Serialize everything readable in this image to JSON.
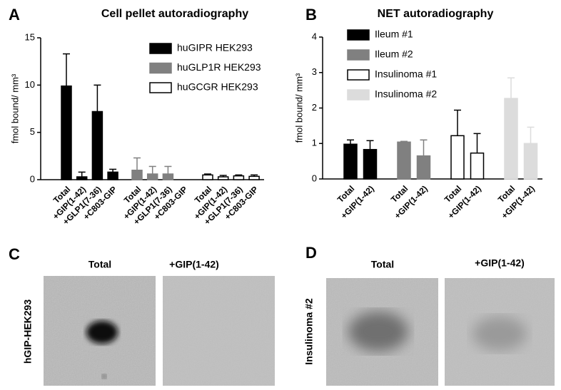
{
  "chart_data": [
    {
      "type": "bar",
      "panel": "A",
      "title": "Cell pellet autoradiography",
      "ylabel": "fmol bound/ mm³",
      "categories": [
        "Total",
        "+GIP(1-42)",
        "+GLP1(7-36)",
        "+C803-GIP",
        "Total",
        "+GIP(1-42)",
        "+GLP1(7-36)",
        "+C803-GIP",
        "Total",
        "+GIP(1-42)",
        "+GLP1(7-36)",
        "+C803-GIP"
      ],
      "series": [
        {
          "name": "huGIPR HEK293",
          "color": "#000000",
          "values": [
            9.9,
            0.3,
            7.2,
            0.8,
            null,
            null,
            null,
            null,
            null,
            null,
            null,
            null
          ],
          "errors": [
            3.4,
            0.5,
            2.8,
            0.3,
            null,
            null,
            null,
            null,
            null,
            null,
            null,
            null
          ]
        },
        {
          "name": "huGLP1R HEK293",
          "color": "#808080",
          "values": [
            null,
            null,
            null,
            null,
            1.0,
            0.6,
            0.6,
            0,
            null,
            null,
            null,
            null
          ],
          "errors": [
            null,
            null,
            null,
            null,
            1.3,
            0.8,
            0.8,
            null,
            null,
            null,
            null,
            null
          ]
        },
        {
          "name": "huGCGR HEK293",
          "color": "#ffffff",
          "values": [
            null,
            null,
            null,
            null,
            null,
            null,
            null,
            null,
            0.5,
            0.3,
            0.4,
            0.35
          ],
          "errors": [
            null,
            null,
            null,
            null,
            null,
            null,
            null,
            null,
            0.1,
            0.15,
            0.1,
            0.15
          ]
        }
      ],
      "ylim": [
        0,
        15
      ],
      "yticks": [
        0,
        5,
        10,
        15
      ],
      "grid": false
    },
    {
      "type": "bar",
      "panel": "B",
      "title": "NET autoradiography",
      "ylabel": "fmol bound/ mm³",
      "categories": [
        "Total",
        "+GIP(1-42)",
        "Total",
        "+GIP(1-42)",
        "Total",
        "+GIP(1-42)",
        "Total",
        "+GIP(1-42)"
      ],
      "series": [
        {
          "name": "Ileum #1",
          "color": "#000000",
          "values": [
            0.98,
            0.83,
            null,
            null,
            null,
            null,
            null,
            null
          ],
          "errors": [
            0.12,
            0.25,
            null,
            null,
            null,
            null,
            null,
            null
          ]
        },
        {
          "name": "Ileum #2",
          "color": "#808080",
          "values": [
            null,
            null,
            1.04,
            0.65,
            null,
            null,
            null,
            null
          ],
          "errors": [
            null,
            null,
            0.02,
            0.45,
            null,
            null,
            null,
            null
          ]
        },
        {
          "name": "Insulinoma #1",
          "color": "#ffffff",
          "values": [
            null,
            null,
            null,
            null,
            1.22,
            0.73,
            null,
            null
          ],
          "errors": [
            null,
            null,
            null,
            null,
            0.72,
            0.55,
            null,
            null
          ]
        },
        {
          "name": "Insulinoma #2",
          "color": "#dcdcdc",
          "values": [
            null,
            null,
            null,
            null,
            null,
            null,
            2.27,
            1.0
          ],
          "errors": [
            null,
            null,
            null,
            null,
            null,
            null,
            0.58,
            0.46
          ]
        }
      ],
      "ylim": [
        0,
        4
      ],
      "yticks": [
        0,
        1,
        2,
        3,
        4
      ],
      "grid": false
    }
  ],
  "panels": [
    {
      "label": "C",
      "columns": [
        "Total",
        "+GIP(1-42)"
      ],
      "row_label": "hGIP-HEK293"
    },
    {
      "label": "D",
      "columns": [
        "Total",
        "+GIP(1-42)"
      ],
      "row_label": "Insulinoma #2"
    }
  ]
}
